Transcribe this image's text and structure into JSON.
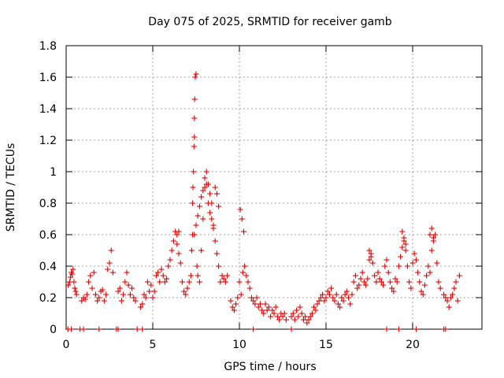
{
  "chart_data": {
    "type": "scatter",
    "title": "Day 075 of 2025, SRMTID for receiver gamb",
    "xlabel": "GPS time / hours",
    "ylabel": "SRMTID / TECUs",
    "xlim": [
      0,
      24
    ],
    "ylim": [
      0,
      1.8
    ],
    "xticks": [
      0,
      5,
      10,
      15,
      20
    ],
    "xtick_labels": [
      "0",
      "5",
      "10",
      "15",
      "20"
    ],
    "yticks": [
      0,
      0.2,
      0.4,
      0.6,
      0.8,
      1.0,
      1.2,
      1.4,
      1.6,
      1.8
    ],
    "ytick_labels": [
      "0",
      "0.2",
      "0.4",
      "0.6",
      "0.8",
      "1",
      "1.2",
      "1.4",
      "1.6",
      "1.8"
    ],
    "grid": true,
    "marker": "+",
    "color": "#e60000",
    "series": [
      {
        "name": "SRMTID",
        "x": [
          0.12,
          0.2,
          0.25,
          0.3,
          0.35,
          0.4,
          0.45,
          0.5,
          0.55,
          0.6,
          0.9,
          1.0,
          1.1,
          1.2,
          1.3,
          1.4,
          1.5,
          1.6,
          1.7,
          1.8,
          1.9,
          2.0,
          2.1,
          2.2,
          2.3,
          2.4,
          2.5,
          2.6,
          2.7,
          3.0,
          3.1,
          3.2,
          3.3,
          3.4,
          3.5,
          3.6,
          3.7,
          3.8,
          3.9,
          4.0,
          4.3,
          4.4,
          4.5,
          4.6,
          4.7,
          4.8,
          4.9,
          5.0,
          5.1,
          5.2,
          5.3,
          5.4,
          5.5,
          5.6,
          5.7,
          5.8,
          5.9,
          6.0,
          6.1,
          6.2,
          6.3,
          6.4,
          6.5,
          6.6,
          6.7,
          6.8,
          6.9,
          7.0,
          7.1,
          7.2,
          7.25,
          7.3,
          7.3,
          7.32,
          7.35,
          7.38,
          7.4,
          7.4,
          7.42,
          7.45,
          7.5,
          7.55,
          7.6,
          7.7,
          7.8,
          7.9,
          8.0,
          8.1,
          8.2,
          8.3,
          8.4,
          8.5,
          8.6,
          8.7,
          8.8,
          8.9,
          9.0,
          9.1,
          9.2,
          9.3,
          9.5,
          9.6,
          9.7,
          9.8,
          9.9,
          10.0,
          10.1,
          10.2,
          10.3,
          10.4,
          10.5,
          10.6,
          10.7,
          10.8,
          10.9,
          11.0,
          11.1,
          11.2,
          11.3,
          11.4,
          11.5,
          11.6,
          11.7,
          11.8,
          11.9,
          12.0,
          12.1,
          12.2,
          12.3,
          12.4,
          12.5,
          12.6,
          12.7,
          13.0,
          13.1,
          13.2,
          13.3,
          13.4,
          13.5,
          13.6,
          13.7,
          13.8,
          13.9,
          14.0,
          14.1,
          14.2,
          14.3,
          14.4,
          14.5,
          14.6,
          14.7,
          14.8,
          14.9,
          15.0,
          15.1,
          15.2,
          15.3,
          15.4,
          15.5,
          15.6,
          15.7,
          15.8,
          15.9,
          16.0,
          16.1,
          16.2,
          16.3,
          16.4,
          16.5,
          16.6,
          16.7,
          16.8,
          16.9,
          17.0,
          17.1,
          17.2,
          17.3,
          17.4,
          17.5,
          17.6,
          17.7,
          17.8,
          17.9,
          18.0,
          18.1,
          18.2,
          18.3,
          18.4,
          18.5,
          18.6,
          18.7,
          18.8,
          18.9,
          19.0,
          19.1,
          19.2,
          19.3,
          19.4,
          19.5,
          19.6,
          19.7,
          19.8,
          19.9,
          20.0,
          20.1,
          20.2,
          20.3,
          20.4,
          20.5,
          20.6,
          20.7,
          20.8,
          20.9,
          21.0,
          21.1,
          21.2,
          21.3,
          21.4,
          21.5,
          21.6,
          21.8,
          21.9,
          22.0,
          22.1,
          22.2,
          22.3,
          22.4,
          22.5,
          22.6,
          22.7,
          7.4,
          7.5,
          7.6,
          7.7,
          7.8,
          7.9,
          8.0,
          8.1,
          8.2,
          8.3,
          8.4,
          8.5,
          8.6,
          8.7,
          8.8,
          10.05,
          10.15,
          10.25,
          19.4,
          19.5,
          19.6,
          21.0,
          21.1,
          21.2,
          17.5,
          17.6,
          6.4,
          6.5,
          0.1,
          0.3,
          0.8,
          1.0,
          1.9,
          2.9,
          3.0,
          4.1,
          4.4,
          10.8,
          13.0,
          18.5,
          19.2,
          20.2,
          21.8,
          21.9
        ],
        "y": [
          0.28,
          0.3,
          0.33,
          0.36,
          0.35,
          0.38,
          0.3,
          0.26,
          0.24,
          0.22,
          0.18,
          0.2,
          0.19,
          0.22,
          0.3,
          0.34,
          0.26,
          0.36,
          0.22,
          0.18,
          0.2,
          0.24,
          0.25,
          0.18,
          0.22,
          0.38,
          0.42,
          0.5,
          0.36,
          0.24,
          0.26,
          0.18,
          0.22,
          0.3,
          0.36,
          0.28,
          0.22,
          0.26,
          0.2,
          0.18,
          0.14,
          0.16,
          0.22,
          0.2,
          0.3,
          0.24,
          0.28,
          0.2,
          0.24,
          0.34,
          0.36,
          0.3,
          0.38,
          0.34,
          0.3,
          0.32,
          0.4,
          0.44,
          0.5,
          0.56,
          0.62,
          0.54,
          0.48,
          0.42,
          0.3,
          0.24,
          0.22,
          0.26,
          0.3,
          0.34,
          0.5,
          0.6,
          0.8,
          0.9,
          1.0,
          1.16,
          1.22,
          1.34,
          1.46,
          1.6,
          1.62,
          0.4,
          0.34,
          0.3,
          0.5,
          0.7,
          0.9,
          1.0,
          0.92,
          0.86,
          0.8,
          0.66,
          0.56,
          0.48,
          0.4,
          0.3,
          0.34,
          0.32,
          0.3,
          0.34,
          0.18,
          0.14,
          0.12,
          0.16,
          0.2,
          0.3,
          0.22,
          0.36,
          0.4,
          0.34,
          0.3,
          0.26,
          0.2,
          0.18,
          0.16,
          0.2,
          0.14,
          0.16,
          0.12,
          0.1,
          0.16,
          0.12,
          0.14,
          0.08,
          0.12,
          0.1,
          0.14,
          0.08,
          0.06,
          0.1,
          0.08,
          0.1,
          0.06,
          0.08,
          0.1,
          0.06,
          0.12,
          0.08,
          0.14,
          0.1,
          0.06,
          0.08,
          0.04,
          0.06,
          0.08,
          0.1,
          0.14,
          0.12,
          0.16,
          0.18,
          0.2,
          0.22,
          0.18,
          0.2,
          0.24,
          0.22,
          0.26,
          0.2,
          0.18,
          0.22,
          0.16,
          0.14,
          0.2,
          0.18,
          0.22,
          0.24,
          0.2,
          0.16,
          0.22,
          0.3,
          0.34,
          0.26,
          0.28,
          0.32,
          0.36,
          0.3,
          0.28,
          0.32,
          0.44,
          0.48,
          0.42,
          0.34,
          0.3,
          0.36,
          0.32,
          0.3,
          0.28,
          0.4,
          0.44,
          0.36,
          0.3,
          0.26,
          0.24,
          0.32,
          0.3,
          0.4,
          0.46,
          0.52,
          0.56,
          0.5,
          0.4,
          0.3,
          0.26,
          0.42,
          0.48,
          0.44,
          0.36,
          0.3,
          0.24,
          0.22,
          0.28,
          0.34,
          0.4,
          0.36,
          0.5,
          0.56,
          0.6,
          0.42,
          0.3,
          0.26,
          0.22,
          0.2,
          0.18,
          0.14,
          0.2,
          0.22,
          0.26,
          0.3,
          0.18,
          0.34,
          0.6,
          0.66,
          0.72,
          0.78,
          0.84,
          0.88,
          0.96,
          0.92,
          0.8,
          0.74,
          0.7,
          0.64,
          0.9,
          0.86,
          0.78,
          0.76,
          0.7,
          0.62,
          0.62,
          0.58,
          0.54,
          0.6,
          0.64,
          0.58,
          0.5,
          0.46,
          0.6,
          0.62,
          0.0,
          0.0,
          0.0,
          0.0,
          0.0,
          0.0,
          0.0,
          0.0,
          0.0,
          0.0,
          0.0,
          0.0,
          0.0,
          0.0,
          0.0,
          0.0
        ]
      }
    ]
  }
}
